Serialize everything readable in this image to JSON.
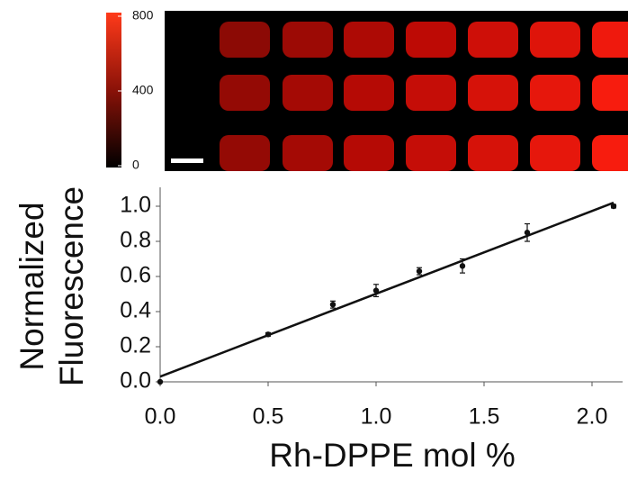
{
  "chart_data": {
    "type": "scatter",
    "xlabel": "Rh-DPPE mol %",
    "ylabel": [
      "Normalized",
      "Fluorescence"
    ],
    "x": [
      0,
      0.5,
      0.8,
      1.0,
      1.2,
      1.4,
      1.7,
      2.1
    ],
    "values": [
      0.0,
      0.27,
      0.44,
      0.52,
      0.63,
      0.66,
      0.85,
      1.0
    ],
    "errors": [
      0,
      0.01,
      0.02,
      0.035,
      0.02,
      0.04,
      0.05,
      0.01
    ],
    "color": "#111111",
    "fit": {
      "x": [
        0,
        2.1
      ],
      "y": [
        0.03,
        1.02
      ]
    },
    "xlim": [
      0,
      2.15
    ],
    "ylim": [
      0,
      1.1
    ],
    "xticks": [
      {
        "value": 0,
        "label": "0.0"
      },
      {
        "value": 0.5,
        "label": "0.5"
      },
      {
        "value": 1,
        "label": "1.0"
      },
      {
        "value": 1.5,
        "label": "1.5"
      },
      {
        "value": 2,
        "label": "2.0"
      }
    ],
    "yticks": [
      {
        "value": 0,
        "label": "0.0"
      },
      {
        "value": 0.2,
        "label": "0.2"
      },
      {
        "value": 0.4,
        "label": "0.4"
      },
      {
        "value": 0.6,
        "label": "0.6"
      },
      {
        "value": 0.8,
        "label": "0.8"
      },
      {
        "value": 1,
        "label": "1.0"
      }
    ],
    "colorbar": {
      "lim": [
        0,
        800
      ],
      "ticks": [
        0,
        400,
        800
      ]
    }
  }
}
